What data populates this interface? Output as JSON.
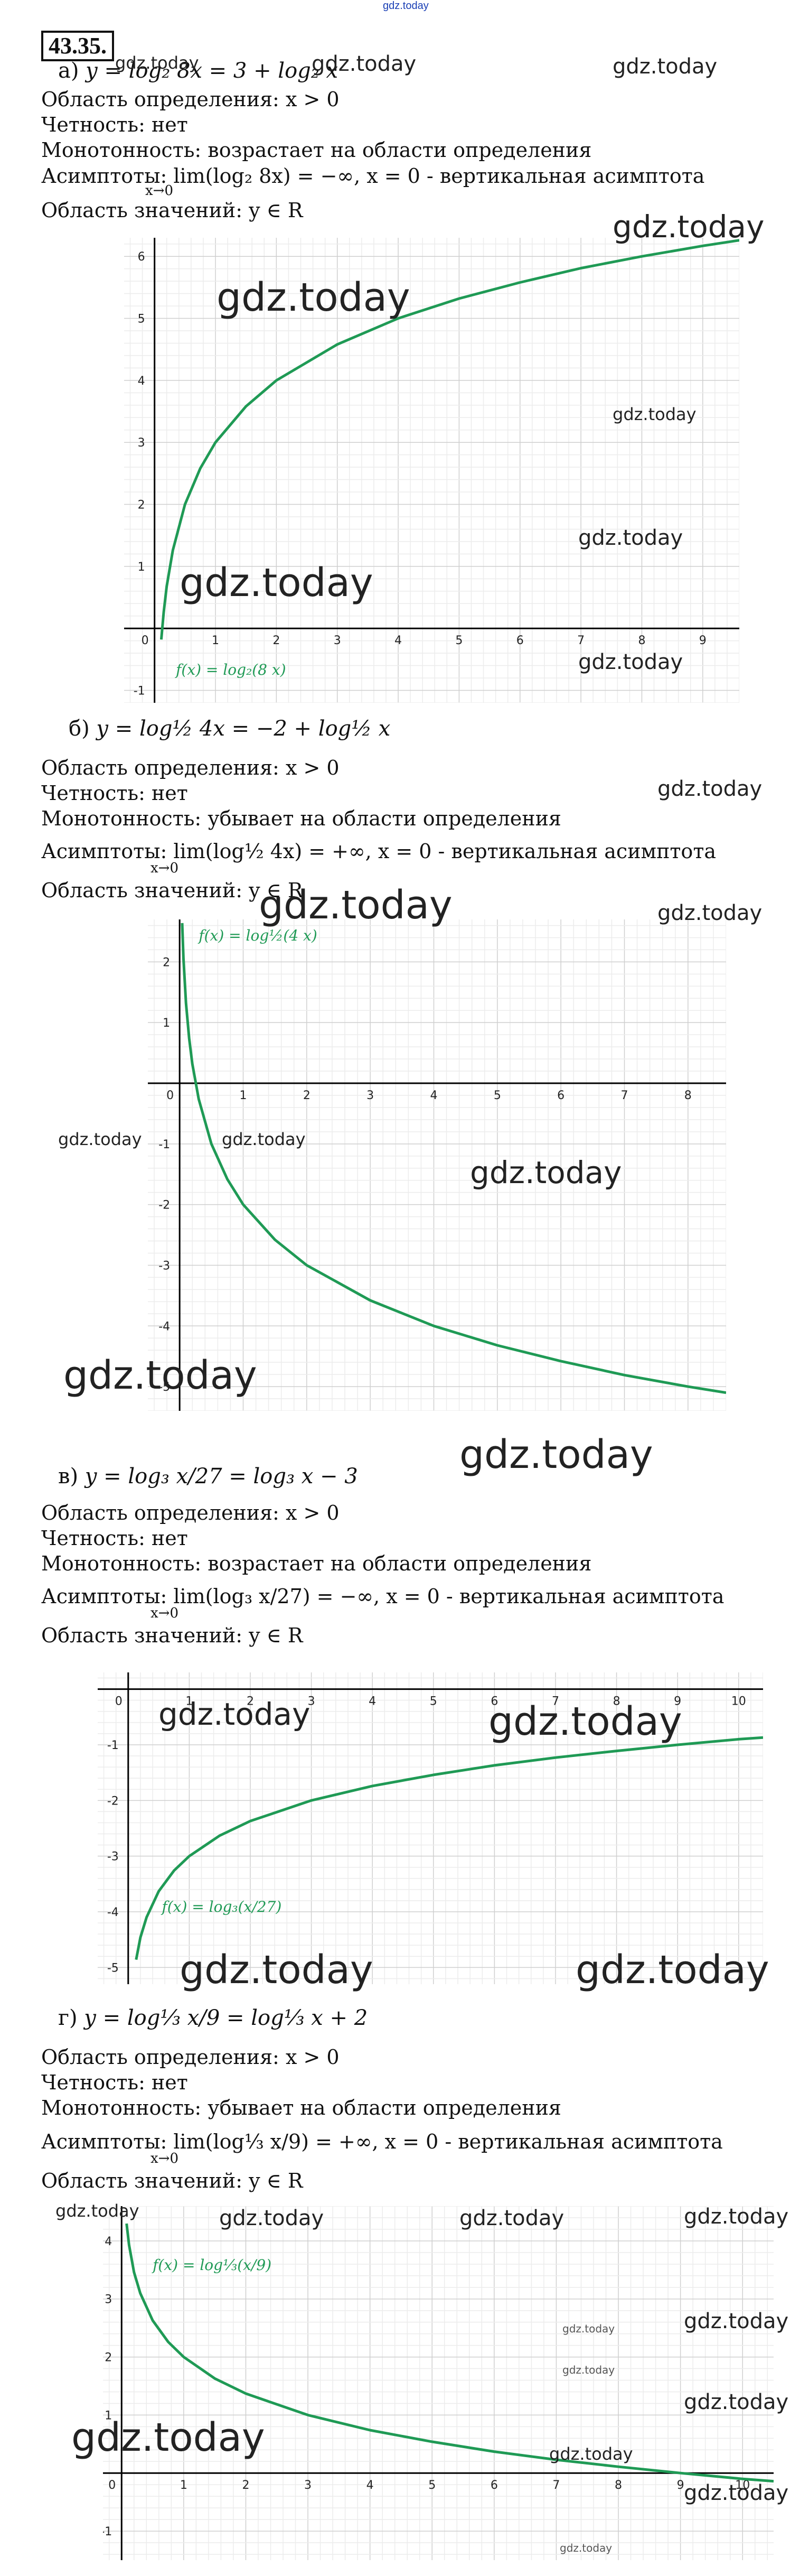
{
  "site_mark": "gdz.today",
  "problem_number": "43.35.",
  "watermark": "gdz.today",
  "sections": [
    {
      "letter": "а)",
      "equation": "y = log₂ 8x = 3 + log₂ x",
      "domain": "Область определения: x > 0",
      "parity": "Четность: нет",
      "monotonic": "Монотонность: возрастает на области определения",
      "asymptote": "Асимптоты: lim(log₂ 8x) = −∞, x = 0 - вертикальная асимптота",
      "asymptote_under": "x→0",
      "range": "Область значений: y ∈ R",
      "legend": "f(x) = log₂(8 x)"
    },
    {
      "letter": "б)",
      "equation": "y = log½ 4x = −2 + log½ x",
      "domain": "Область определения: x > 0",
      "parity": "Четность: нет",
      "monotonic": "Монотонность: убывает на области определения",
      "asymptote": "Асимптоты: lim(log½ 4x) = +∞, x = 0 - вертикальная асимптота",
      "asymptote_under": "x→0",
      "range": "Область значений: y ∈ R",
      "legend": "f(x) = log½(4 x)"
    },
    {
      "letter": "в)",
      "equation": "y = log₃ x/27 = log₃ x − 3",
      "domain": "Область определения: x > 0",
      "parity": "Четность: нет",
      "monotonic": "Монотонность: возрастает на области определения",
      "asymptote": "Асимптоты: lim(log₃ x/27) = −∞, x = 0 - вертикальная асимптота",
      "asymptote_under": "x→0",
      "range": "Область значений: y ∈ R",
      "legend": "f(x) = log₃(x/27)"
    },
    {
      "letter": "г)",
      "equation": "y = log⅓ x/9 = log⅓ x + 2",
      "domain": "Область определения: x > 0",
      "parity": "Четность: нет",
      "monotonic": "Монотонность: убывает на области определения",
      "asymptote": "Асимптоты: lim(log⅓ x/9) = +∞, x = 0 - вертикальная асимптота",
      "asymptote_under": "x→0",
      "range": "Область значений: y ∈ R",
      "legend": "f(x) = log⅓(x/9)"
    }
  ],
  "colors": {
    "curve": "#1f9a55",
    "grid_major": "#cfcfcf",
    "grid_minor": "#ececec",
    "axis": "#000000",
    "link": "#1a3fb5"
  },
  "chart_data": [
    {
      "type": "line",
      "title": "",
      "xlim": [
        -0.5,
        9.6
      ],
      "ylim": [
        -1.2,
        6.3
      ],
      "xticks": [
        0,
        1,
        2,
        3,
        4,
        5,
        6,
        7,
        8,
        9
      ],
      "yticks": [
        -1,
        1,
        2,
        3,
        4,
        5,
        6
      ],
      "function": "log2(8x)",
      "series": [
        {
          "name": "f(x) = log₂(8 x)",
          "x": [
            0.11,
            0.15,
            0.2,
            0.3,
            0.5,
            0.75,
            1,
            1.5,
            2,
            3,
            4,
            5,
            6,
            7,
            8,
            9,
            9.6
          ],
          "y": [
            -0.18,
            0.26,
            0.68,
            1.26,
            2,
            2.58,
            3,
            3.58,
            4,
            4.58,
            5,
            5.32,
            5.58,
            5.81,
            6,
            6.17,
            6.26
          ]
        }
      ]
    },
    {
      "type": "line",
      "title": "",
      "xlim": [
        -0.5,
        8.6
      ],
      "ylim": [
        -5.4,
        2.7
      ],
      "xticks": [
        0,
        1,
        2,
        3,
        4,
        5,
        6,
        7,
        8
      ],
      "yticks": [
        -5,
        -4,
        -3,
        -2,
        -1,
        1,
        2
      ],
      "function": "log_(1/2)(4x)",
      "series": [
        {
          "name": "f(x) = log½(4 x)",
          "x": [
            0.04,
            0.06,
            0.1,
            0.15,
            0.2,
            0.3,
            0.5,
            0.75,
            1,
            1.5,
            2,
            3,
            4,
            5,
            6,
            7,
            8,
            8.6
          ],
          "y": [
            2.64,
            2.06,
            1.32,
            0.74,
            0.32,
            -0.26,
            -1,
            -1.58,
            -2,
            -2.58,
            -3,
            -3.58,
            -4,
            -4.32,
            -4.58,
            -4.81,
            -5,
            -5.1
          ]
        }
      ]
    },
    {
      "type": "line",
      "title": "",
      "xlim": [
        -0.5,
        10.4
      ],
      "ylim": [
        -5.3,
        0.3
      ],
      "xticks": [
        0,
        1,
        2,
        3,
        4,
        5,
        6,
        7,
        8,
        9,
        10
      ],
      "yticks": [
        -1,
        -2,
        -3,
        -4,
        -5
      ],
      "function": "log3(x/27)",
      "series": [
        {
          "name": "f(x) = log₃(x/27)",
          "x": [
            0.13,
            0.2,
            0.3,
            0.5,
            0.75,
            1,
            1.5,
            2,
            3,
            4,
            5,
            6,
            7,
            8,
            9,
            10,
            10.4
          ],
          "y": [
            -4.86,
            -4.46,
            -4.1,
            -3.63,
            -3.26,
            -3,
            -2.63,
            -2.37,
            -2,
            -1.74,
            -1.54,
            -1.37,
            -1.23,
            -1.11,
            -1,
            -0.9,
            -0.87
          ]
        }
      ]
    },
    {
      "type": "line",
      "title": "",
      "xlim": [
        -0.3,
        10.5
      ],
      "ylim": [
        -1.5,
        4.6
      ],
      "xticks": [
        0,
        1,
        2,
        3,
        4,
        5,
        6,
        7,
        8,
        9,
        10
      ],
      "yticks": [
        -1,
        1,
        2,
        3,
        4
      ],
      "function": "log_(1/3)(x/9)",
      "series": [
        {
          "name": "f(x) = log⅓(x/9)",
          "x": [
            0.08,
            0.12,
            0.2,
            0.3,
            0.5,
            0.75,
            1,
            1.5,
            2,
            3,
            4,
            5,
            6,
            7,
            8,
            9,
            10,
            10.5
          ],
          "y": [
            4.3,
            3.93,
            3.46,
            3.1,
            2.63,
            2.26,
            2,
            1.63,
            1.37,
            1,
            0.74,
            0.54,
            0.37,
            0.23,
            0.11,
            0,
            -0.1,
            -0.14
          ]
        }
      ]
    }
  ]
}
